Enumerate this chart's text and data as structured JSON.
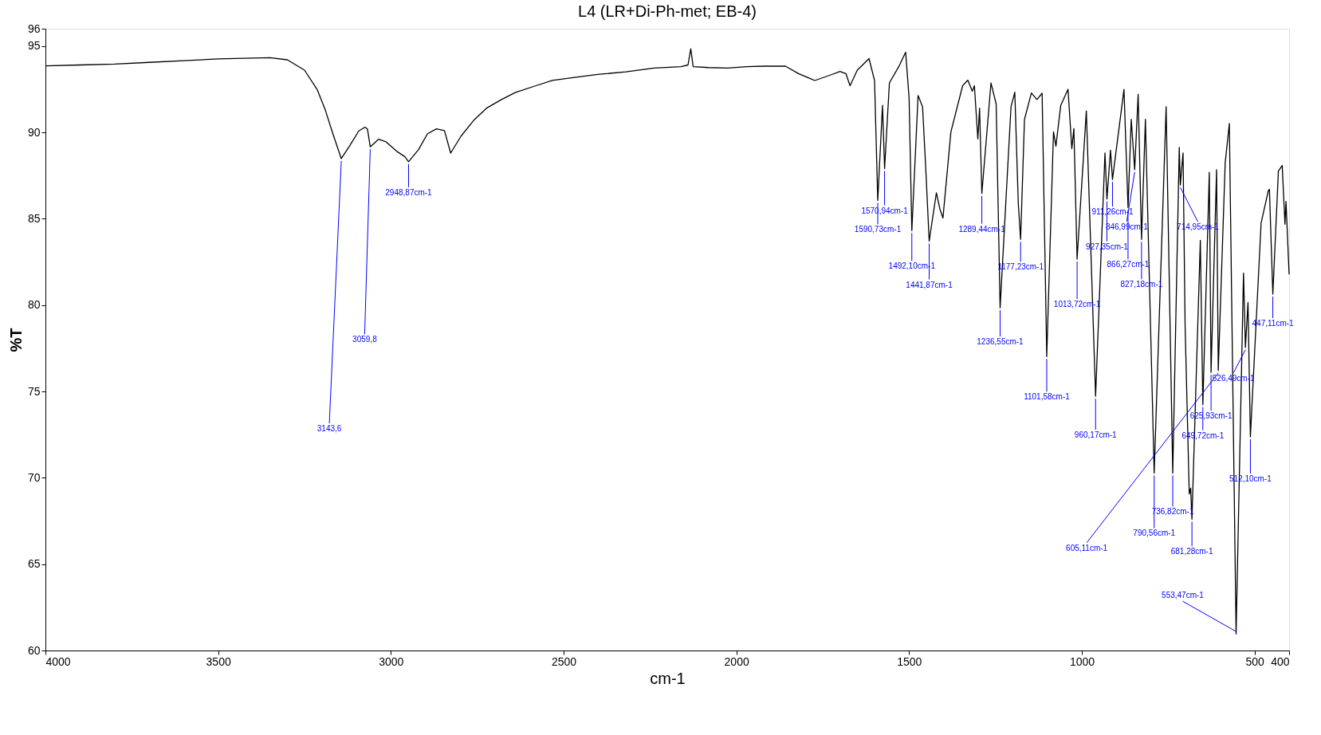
{
  "chart_data": {
    "type": "line",
    "title": "L4 (LR+Di-Ph-met; EB-4)",
    "xlabel": "cm-1",
    "ylabel": "%T",
    "xlim": [
      4000,
      400
    ],
    "xticks": [
      4000,
      3500,
      3000,
      2500,
      2000,
      1500,
      1000,
      500,
      400
    ],
    "ylim": [
      60,
      96
    ],
    "yticks": [
      60,
      65,
      70,
      75,
      80,
      85,
      90,
      95,
      96
    ],
    "grid": false,
    "marker": "none",
    "line_style": "solid",
    "series": [
      {
        "color": "#000000",
        "x": [
          4000,
          3900,
          3800,
          3700,
          3600,
          3500,
          3400,
          3350,
          3300,
          3250,
          3213,
          3190,
          3168,
          3143.6,
          3120,
          3093,
          3075,
          3068,
          3059.8,
          3036,
          3014,
          2983,
          2960,
          2948.87,
          2920,
          2894,
          2868,
          2845,
          2827,
          2797,
          2760,
          2723,
          2680,
          2639,
          2580,
          2533,
          2460,
          2397,
          2320,
          2238,
          2160,
          2140,
          2132,
          2125,
          2080,
          2026,
          1970,
          1920,
          1858,
          1820,
          1773,
          1730,
          1700,
          1683,
          1671,
          1650,
          1616,
          1600,
          1590.73,
          1577,
          1570.94,
          1557,
          1530,
          1510,
          1500,
          1492.1,
          1474,
          1461,
          1451,
          1441.87,
          1421,
          1411,
          1402,
          1379,
          1345,
          1330,
          1317,
          1311,
          1301,
          1296,
          1289.44,
          1263,
          1248,
          1236.55,
          1205,
          1194,
          1184,
          1177.23,
          1166,
          1146,
          1130,
          1115,
          1101.58,
          1082,
          1075,
          1061,
          1040,
          1029,
          1023,
          1013.72,
          987,
          960.17,
          933,
          927.35,
          917,
          911.26,
          878,
          866.27,
          857,
          846.99,
          837,
          827.18,
          816,
          790.56,
          756,
          736.82,
          718,
          714.95,
          707,
          701,
          689,
          685,
          681.28,
          657,
          649.72,
          631,
          625.93,
          610,
          605.11,
          585,
          573,
          553.47,
          532,
          526.49,
          519,
          512.1,
          481,
          460,
          457,
          447.11,
          431,
          420,
          412,
          409,
          400
        ],
        "values": [
          93.85,
          93.9,
          93.95,
          94.05,
          94.15,
          94.25,
          94.3,
          94.32,
          94.2,
          93.6,
          92.46,
          91.3,
          89.92,
          88.48,
          89.2,
          90.08,
          90.3,
          90.2,
          89.16,
          89.6,
          89.45,
          88.9,
          88.6,
          88.3,
          89.0,
          89.92,
          90.2,
          90.1,
          88.8,
          89.78,
          90.7,
          91.4,
          91.9,
          92.31,
          92.7,
          93.01,
          93.2,
          93.36,
          93.5,
          93.72,
          93.8,
          93.9,
          94.84,
          93.8,
          93.75,
          93.72,
          93.8,
          93.83,
          93.83,
          93.4,
          93.0,
          93.3,
          93.52,
          93.4,
          92.7,
          93.6,
          94.27,
          93.0,
          86.06,
          91.56,
          87.9,
          92.86,
          93.8,
          94.64,
          92.0,
          84.31,
          92.13,
          91.48,
          87.6,
          83.7,
          86.5,
          85.57,
          85.04,
          90.03,
          92.7,
          93.02,
          92.38,
          92.7,
          89.62,
          91.4,
          86.46,
          92.86,
          91.65,
          79.84,
          91.48,
          92.32,
          85.9,
          83.8,
          90.75,
          92.28,
          91.9,
          92.26,
          77.02,
          90.03,
          89.2,
          91.56,
          92.49,
          89.05,
          90.22,
          82.66,
          91.24,
          74.72,
          88.81,
          86.14,
          88.97,
          87.27,
          92.49,
          85.65,
          90.75,
          87.84,
          92.2,
          83.8,
          90.75,
          70.27,
          91.48,
          70.27,
          89.13,
          86.95,
          88.81,
          78.76,
          69.06,
          69.4,
          67.6,
          83.75,
          74.23,
          87.68,
          76.1,
          87.84,
          76.21,
          88.24,
          90.51,
          60.96,
          81.85,
          77.55,
          80.15,
          72.37,
          84.76,
          86.63,
          86.7,
          80.63,
          87.76,
          88.08,
          84.68,
          86.0,
          81.77
        ]
      }
    ],
    "annotations": [
      {
        "text": "3143,6",
        "x": 3143.6,
        "y": 88.48
      },
      {
        "text": "3059,8",
        "x": 3059.8,
        "y": 89.16
      },
      {
        "text": "2948,87cm-1",
        "x": 2948.87,
        "y": 88.3
      },
      {
        "text": "1590,73cm-1",
        "x": 1590.73,
        "y": 86.06
      },
      {
        "text": "1570,94cm-1",
        "x": 1570.94,
        "y": 87.9
      },
      {
        "text": "1492,10cm-1",
        "x": 1492.1,
        "y": 84.31
      },
      {
        "text": "1441,87cm-1",
        "x": 1441.87,
        "y": 83.7
      },
      {
        "text": "1289,44cm-1",
        "x": 1289.44,
        "y": 86.46
      },
      {
        "text": "1236,55cm-1",
        "x": 1236.55,
        "y": 79.84
      },
      {
        "text": "1177,23cm-1",
        "x": 1177.23,
        "y": 83.8
      },
      {
        "text": "1101,58cm-1",
        "x": 1101.58,
        "y": 77.02
      },
      {
        "text": "1013,72cm-1",
        "x": 1013.72,
        "y": 82.66
      },
      {
        "text": "960,17cm-1",
        "x": 960.17,
        "y": 74.72
      },
      {
        "text": "927,35cm-1",
        "x": 927.35,
        "y": 86.14
      },
      {
        "text": "911,26cm-1",
        "x": 911.26,
        "y": 87.27
      },
      {
        "text": "866,27cm-1",
        "x": 866.27,
        "y": 85.65
      },
      {
        "text": "846,99cm-1",
        "x": 846.99,
        "y": 87.84
      },
      {
        "text": "827,18cm-1",
        "x": 827.18,
        "y": 83.8
      },
      {
        "text": "790,56cm-1",
        "x": 790.56,
        "y": 70.27
      },
      {
        "text": "736,82cm-1",
        "x": 736.82,
        "y": 70.27
      },
      {
        "text": "714,95cm-1",
        "x": 714.95,
        "y": 86.95
      },
      {
        "text": "681,28cm-1",
        "x": 681.28,
        "y": 67.6
      },
      {
        "text": "649,72cm-1",
        "x": 649.72,
        "y": 74.23
      },
      {
        "text": "625,93cm-1",
        "x": 625.93,
        "y": 76.1
      },
      {
        "text": "605,11cm-1",
        "x": 605.11,
        "y": 76.21
      },
      {
        "text": "553,47cm-1",
        "x": 553.47,
        "y": 60.96
      },
      {
        "text": "526,49cm-1",
        "x": 526.49,
        "y": 77.55
      },
      {
        "text": "512,10cm-1",
        "x": 512.1,
        "y": 72.37
      },
      {
        "text": "447,11cm-1",
        "x": 447.11,
        "y": 80.63
      }
    ]
  }
}
